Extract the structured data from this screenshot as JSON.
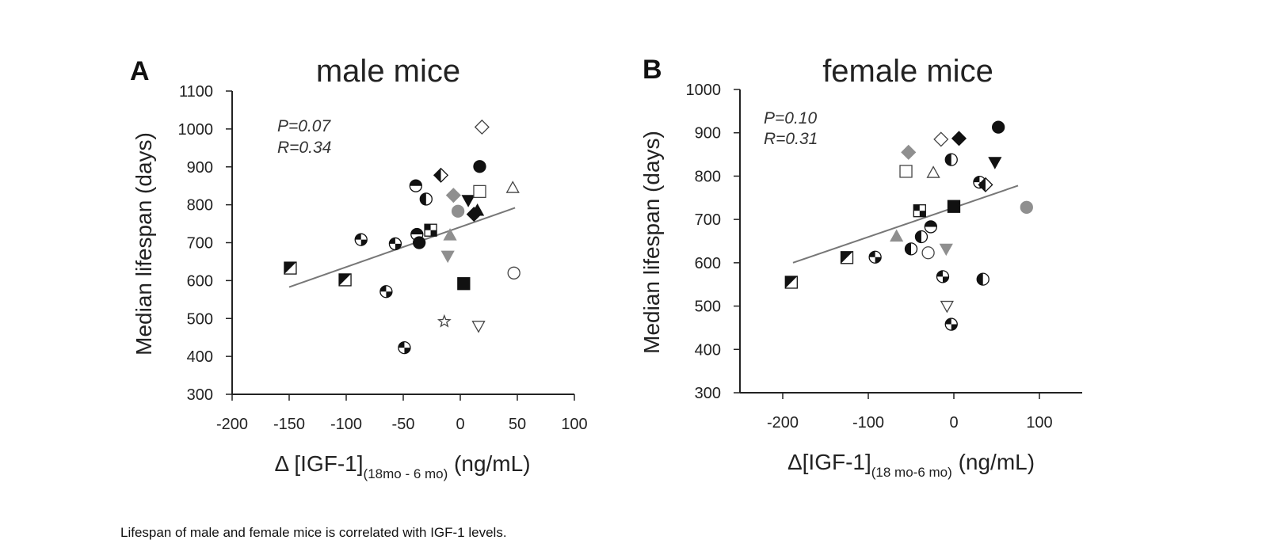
{
  "caption": "Lifespan of male and female mice is correlated with IGF-1 levels.",
  "colors": {
    "axis": "#222222",
    "fit_line": "#777777",
    "gray": "#8f8f8f",
    "black": "#111111",
    "outline": "#444444"
  },
  "chart_data": [
    {
      "type": "scatter",
      "panel_label": "A",
      "title": "male mice",
      "ylabel": "Median lifespan (days)",
      "xlabel": {
        "prefix": "Δ [IGF-1]",
        "subscript": "(18mo - 6 mo)",
        "suffix": " (ng/mL)"
      },
      "stats": {
        "p": "P=0.07",
        "r": "R=0.34"
      },
      "xlim": [
        -200,
        100
      ],
      "ylim": [
        300,
        1100
      ],
      "xticks": [
        -200,
        -150,
        -100,
        -50,
        0,
        50,
        100
      ],
      "xtick_labels": [
        "-200",
        "-150",
        "-100",
        "-50",
        "0",
        "50",
        "100"
      ],
      "yticks": [
        300,
        400,
        500,
        600,
        700,
        800,
        900,
        1000,
        1100
      ],
      "ytick_labels": [
        "300",
        "400",
        "500",
        "600",
        "700",
        "800",
        "900",
        "1000",
        "1100"
      ],
      "fit_line": {
        "x": [
          -150,
          48
        ],
        "y": [
          583,
          792
        ]
      },
      "points": [
        {
          "x": -149,
          "y": 633,
          "marker": "square-diag"
        },
        {
          "x": -101,
          "y": 602,
          "marker": "square-diag"
        },
        {
          "x": -87,
          "y": 708,
          "marker": "circle-pie"
        },
        {
          "x": -65,
          "y": 571,
          "marker": "circle-pie"
        },
        {
          "x": -57,
          "y": 697,
          "marker": "circle-pie"
        },
        {
          "x": -49,
          "y": 423,
          "marker": "circle-pie"
        },
        {
          "x": -39,
          "y": 850,
          "marker": "circle-half-top"
        },
        {
          "x": -38,
          "y": 722,
          "marker": "circle-half-top"
        },
        {
          "x": -36,
          "y": 700,
          "marker": "circle-black"
        },
        {
          "x": -30,
          "y": 815,
          "marker": "circle-half-left"
        },
        {
          "x": -26,
          "y": 733,
          "marker": "square-checker"
        },
        {
          "x": -17,
          "y": 878,
          "marker": "diamond-half"
        },
        {
          "x": -14,
          "y": 492,
          "marker": "star-open"
        },
        {
          "x": -11,
          "y": 665,
          "marker": "triangle-down-gray"
        },
        {
          "x": -9,
          "y": 720,
          "marker": "triangle-up-gray"
        },
        {
          "x": -6,
          "y": 825,
          "marker": "diamond-gray"
        },
        {
          "x": -2,
          "y": 783,
          "marker": "circle-gray"
        },
        {
          "x": 3,
          "y": 592,
          "marker": "square-black"
        },
        {
          "x": 7,
          "y": 812,
          "marker": "triangle-down-black"
        },
        {
          "x": 12,
          "y": 775,
          "marker": "diamond-black"
        },
        {
          "x": 15,
          "y": 785,
          "marker": "triangle-up-black"
        },
        {
          "x": 16,
          "y": 480,
          "marker": "triangle-down-open"
        },
        {
          "x": 17,
          "y": 835,
          "marker": "square-open"
        },
        {
          "x": 17,
          "y": 901,
          "marker": "circle-black"
        },
        {
          "x": 19,
          "y": 1005,
          "marker": "diamond-open"
        },
        {
          "x": 46,
          "y": 845,
          "marker": "triangle-up-open"
        },
        {
          "x": 47,
          "y": 620,
          "marker": "circle-open"
        }
      ]
    },
    {
      "type": "scatter",
      "panel_label": "B",
      "title": "female mice",
      "ylabel": "Median lifespan (days)",
      "xlabel": {
        "prefix": "Δ[IGF-1]",
        "subscript": "(18 mo-6 mo)",
        "suffix": " (ng/mL)"
      },
      "stats": {
        "p": "P=0.10",
        "r": "R=0.31"
      },
      "xlim": [
        -250,
        150
      ],
      "ylim": [
        300,
        1000
      ],
      "xticks": [
        -200,
        -100,
        0,
        100
      ],
      "xtick_labels": [
        "-200",
        "-100",
        "0",
        "100"
      ],
      "yticks": [
        300,
        400,
        500,
        600,
        700,
        800,
        900,
        1000
      ],
      "ytick_labels": [
        "300",
        "400",
        "500",
        "600",
        "700",
        "800",
        "900",
        "1000"
      ],
      "fit_line": {
        "x": [
          -188,
          75
        ],
        "y": [
          600,
          778
        ]
      },
      "points": [
        {
          "x": -190,
          "y": 555,
          "marker": "square-diag"
        },
        {
          "x": -125,
          "y": 612,
          "marker": "square-diag"
        },
        {
          "x": -92,
          "y": 613,
          "marker": "circle-pie"
        },
        {
          "x": -67,
          "y": 661,
          "marker": "triangle-up-gray"
        },
        {
          "x": -53,
          "y": 855,
          "marker": "diamond-gray"
        },
        {
          "x": -56,
          "y": 811,
          "marker": "square-open"
        },
        {
          "x": -50,
          "y": 632,
          "marker": "circle-half-left"
        },
        {
          "x": -40,
          "y": 720,
          "marker": "square-checker"
        },
        {
          "x": -38,
          "y": 660,
          "marker": "circle-half-left"
        },
        {
          "x": -30,
          "y": 623,
          "marker": "circle-open"
        },
        {
          "x": -27,
          "y": 683,
          "marker": "circle-half-top"
        },
        {
          "x": -24,
          "y": 808,
          "marker": "triangle-up-open"
        },
        {
          "x": -15,
          "y": 885,
          "marker": "diamond-open"
        },
        {
          "x": -13,
          "y": 568,
          "marker": "circle-pie"
        },
        {
          "x": -9,
          "y": 632,
          "marker": "triangle-down-gray"
        },
        {
          "x": -8,
          "y": 500,
          "marker": "triangle-down-open"
        },
        {
          "x": -3,
          "y": 838,
          "marker": "circle-half-left"
        },
        {
          "x": -3,
          "y": 458,
          "marker": "circle-pie"
        },
        {
          "x": 0,
          "y": 730,
          "marker": "square-black"
        },
        {
          "x": 6,
          "y": 887,
          "marker": "diamond-black"
        },
        {
          "x": 30,
          "y": 786,
          "marker": "circle-pie"
        },
        {
          "x": 34,
          "y": 562,
          "marker": "circle-half-left"
        },
        {
          "x": 37,
          "y": 780,
          "marker": "diamond-half"
        },
        {
          "x": 48,
          "y": 832,
          "marker": "triangle-down-black"
        },
        {
          "x": 52,
          "y": 913,
          "marker": "circle-black"
        },
        {
          "x": 85,
          "y": 728,
          "marker": "circle-gray"
        }
      ]
    }
  ]
}
